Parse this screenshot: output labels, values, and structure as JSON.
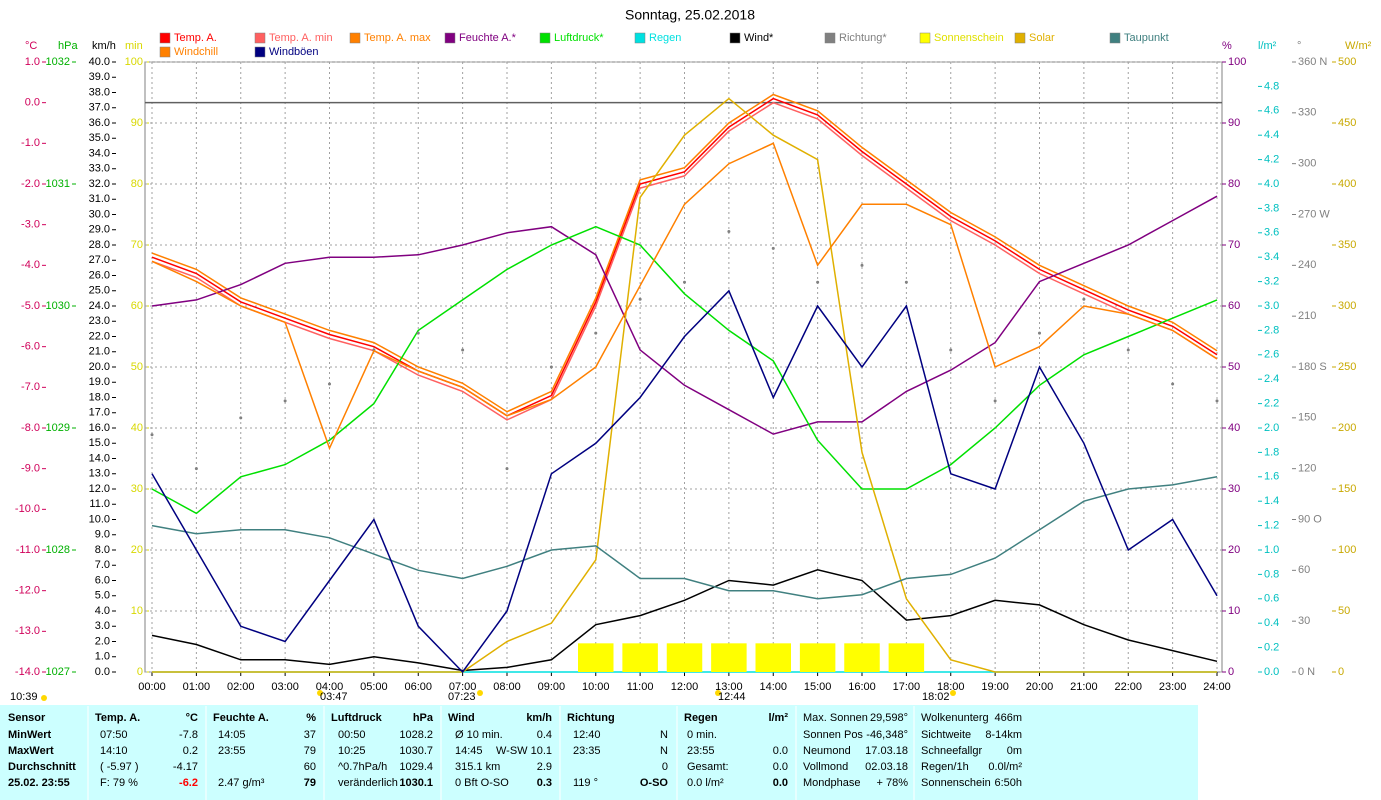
{
  "chart_data": {
    "type": "line",
    "title": "Sonntag, 25.02.2018",
    "xlim": [
      0,
      24
    ],
    "xticks": [
      {
        "value": 0,
        "label": "00:00"
      },
      {
        "value": 1,
        "label": "01:00"
      },
      {
        "value": 2,
        "label": "02:00"
      },
      {
        "value": 3,
        "label": "03:00"
      },
      {
        "value": 4,
        "label": "04:00"
      },
      {
        "value": 5,
        "label": "05:00"
      },
      {
        "value": 6,
        "label": "06:00"
      },
      {
        "value": 7,
        "label": "07:00"
      },
      {
        "value": 8,
        "label": "08:00"
      },
      {
        "value": 9,
        "label": "09:00"
      },
      {
        "value": 10,
        "label": "10:00"
      },
      {
        "value": 11,
        "label": "11:00"
      },
      {
        "value": 12,
        "label": "12:00"
      },
      {
        "value": 13,
        "label": "13:00"
      },
      {
        "value": 14,
        "label": "14:00"
      },
      {
        "value": 15,
        "label": "15:00"
      },
      {
        "value": 16,
        "label": "16:00"
      },
      {
        "value": 17,
        "label": "17:00"
      },
      {
        "value": 18,
        "label": "18:00"
      },
      {
        "value": 19,
        "label": "19:00"
      },
      {
        "value": 20,
        "label": "20:00"
      },
      {
        "value": 21,
        "label": "21:00"
      },
      {
        "value": 22,
        "label": "22:00"
      },
      {
        "value": 23,
        "label": "23:00"
      },
      {
        "value": 24,
        "label": "24:00"
      }
    ],
    "x": [
      0,
      1,
      2,
      3,
      4,
      5,
      6,
      7,
      8,
      9,
      10,
      11,
      12,
      13,
      14,
      15,
      16,
      17,
      18,
      19,
      20,
      21,
      22,
      23,
      24
    ],
    "grid": true,
    "axes": [
      {
        "unit": "°C",
        "side": "left",
        "color": "#d0005a",
        "lim": [
          -14,
          1
        ],
        "ticks": [
          {
            "value": 1,
            "label": "1.0"
          },
          {
            "value": 0,
            "label": "0.0"
          },
          {
            "value": -1,
            "label": "-1.0"
          },
          {
            "value": -2,
            "label": "-2.0"
          },
          {
            "value": -3,
            "label": "-3.0"
          },
          {
            "value": -4,
            "label": "-4.0"
          },
          {
            "value": -5,
            "label": "-5.0"
          },
          {
            "value": -6,
            "label": "-6.0"
          },
          {
            "value": -7,
            "label": "-7.0"
          },
          {
            "value": -8,
            "label": "-8.0"
          },
          {
            "value": -9,
            "label": "-9.0"
          },
          {
            "value": -10,
            "label": "-10.0"
          },
          {
            "value": -11,
            "label": "-11.0"
          },
          {
            "value": -12,
            "label": "-12.0"
          },
          {
            "value": -13,
            "label": "-13.0"
          },
          {
            "value": -14,
            "label": "-14.0"
          }
        ]
      },
      {
        "unit": "hPa",
        "side": "left",
        "color": "#00b000",
        "lim": [
          1027,
          1032
        ],
        "ticks": [
          1032,
          1031,
          1030,
          1029,
          1028,
          1027
        ]
      },
      {
        "unit": "km/h",
        "side": "left",
        "color": "#000000",
        "lim": [
          0,
          40
        ],
        "ticks": [
          {
            "value": 40,
            "label": "40.0"
          },
          {
            "value": 39,
            "label": "39.0"
          },
          {
            "value": 38,
            "label": "38.0"
          },
          {
            "value": 37,
            "label": "37.0"
          },
          {
            "value": 36,
            "label": "36.0"
          },
          {
            "value": 35,
            "label": "35.0"
          },
          {
            "value": 34,
            "label": "34.0"
          },
          {
            "value": 33,
            "label": "33.0"
          },
          {
            "value": 32,
            "label": "32.0"
          },
          {
            "value": 31,
            "label": "31.0"
          },
          {
            "value": 30,
            "label": "30.0"
          },
          {
            "value": 29,
            "label": "29.0"
          },
          {
            "value": 28,
            "label": "28.0"
          },
          {
            "value": 27,
            "label": "27.0"
          },
          {
            "value": 26,
            "label": "26.0"
          },
          {
            "value": 25,
            "label": "25.0"
          },
          {
            "value": 24,
            "label": "24.0"
          },
          {
            "value": 23,
            "label": "23.0"
          },
          {
            "value": 22,
            "label": "22.0"
          },
          {
            "value": 21,
            "label": "21.0"
          },
          {
            "value": 20,
            "label": "20.0"
          },
          {
            "value": 19,
            "label": "19.0"
          },
          {
            "value": 18,
            "label": "18.0"
          },
          {
            "value": 17,
            "label": "17.0"
          },
          {
            "value": 16,
            "label": "16.0"
          },
          {
            "value": 15,
            "label": "15.0"
          },
          {
            "value": 14,
            "label": "14.0"
          },
          {
            "value": 13,
            "label": "13.0"
          },
          {
            "value": 12,
            "label": "12.0"
          },
          {
            "value": 11,
            "label": "11.0"
          },
          {
            "value": 10,
            "label": "10.0"
          },
          {
            "value": 9,
            "label": "9.0"
          },
          {
            "value": 8,
            "label": "8.0"
          },
          {
            "value": 7,
            "label": "7.0"
          },
          {
            "value": 6,
            "label": "6.0"
          },
          {
            "value": 5,
            "label": "5.0"
          },
          {
            "value": 4,
            "label": "4.0"
          },
          {
            "value": 3,
            "label": "3.0"
          },
          {
            "value": 2,
            "label": "2.0"
          },
          {
            "value": 1,
            "label": "1.0"
          },
          {
            "value": 0,
            "label": "0.0"
          }
        ]
      },
      {
        "unit": "min",
        "side": "left",
        "color": "#d8d800",
        "lim": [
          0,
          100
        ],
        "ticks": [
          100,
          90,
          80,
          70,
          60,
          50,
          40,
          30,
          20,
          10,
          0
        ]
      },
      {
        "unit": "%",
        "side": "right",
        "color": "#800080",
        "lim": [
          0,
          100
        ],
        "ticks": [
          100,
          90,
          80,
          70,
          60,
          50,
          40,
          30,
          20,
          10,
          0
        ],
        "grid": true
      },
      {
        "unit": "l/m²",
        "side": "right",
        "color": "#00c0c0",
        "lim": [
          0,
          5
        ],
        "ticks": [
          4.8,
          4.6,
          4.4,
          4.2,
          {
            "value": 4,
            "label": "4.0"
          },
          3.8,
          3.6,
          3.4,
          3.2,
          {
            "value": 3,
            "label": "3.0"
          },
          2.8,
          2.6,
          2.4,
          2.2,
          {
            "value": 2,
            "label": "2.0"
          },
          1.8,
          1.6,
          1.4,
          1.2,
          {
            "value": 1,
            "label": "1.0"
          },
          0.8,
          0.6,
          0.4,
          0.2,
          {
            "value": 0,
            "label": "0.0"
          }
        ]
      },
      {
        "unit": "°",
        "side": "right",
        "color": "#808080",
        "lim": [
          0,
          360
        ],
        "ticks": [
          {
            "value": 360,
            "label": "360 N"
          },
          330,
          300,
          {
            "value": 270,
            "label": "270 W"
          },
          240,
          210,
          {
            "value": 180,
            "label": "180 S"
          },
          150,
          120,
          {
            "value": 90,
            "label": "90 O"
          },
          60,
          30,
          {
            "value": 0,
            "label": "0 N"
          }
        ]
      },
      {
        "unit": "W/m²",
        "side": "right",
        "color": "#c8a800",
        "lim": [
          0,
          500
        ],
        "ticks": [
          500,
          450,
          400,
          350,
          300,
          250,
          200,
          150,
          100,
          50,
          0
        ]
      }
    ],
    "series": [
      {
        "name": "Temp. A.",
        "color": "#ff0000",
        "axis": "°C",
        "style": "line",
        "values": [
          -3.8,
          -4.2,
          -4.9,
          -5.3,
          -5.7,
          -6.0,
          -6.6,
          -7.0,
          -7.7,
          -7.2,
          -4.9,
          -2.0,
          -1.7,
          -0.6,
          0.1,
          -0.3,
          -1.2,
          -2.0,
          -2.8,
          -3.4,
          -4.1,
          -4.6,
          -5.1,
          -5.5,
          -6.2
        ]
      },
      {
        "name": "Temp. A. min",
        "color": "#ff6060",
        "axis": "°C",
        "style": "line",
        "values": [
          -3.9,
          -4.3,
          -5.0,
          -5.4,
          -5.8,
          -6.1,
          -6.7,
          -7.1,
          -7.8,
          -7.3,
          -5.0,
          -2.1,
          -1.8,
          -0.7,
          0.0,
          -0.4,
          -1.3,
          -2.1,
          -2.9,
          -3.5,
          -4.2,
          -4.7,
          -5.2,
          -5.6,
          -6.3
        ]
      },
      {
        "name": "Temp. A. max",
        "color": "#ff8000",
        "axis": "°C",
        "style": "line",
        "values": [
          -3.7,
          -4.1,
          -4.8,
          -5.2,
          -5.6,
          -5.9,
          -6.5,
          -6.9,
          -7.6,
          -7.1,
          -4.8,
          -1.9,
          -1.6,
          -0.5,
          0.2,
          -0.2,
          -1.1,
          -1.9,
          -2.7,
          -3.3,
          -4.0,
          -4.5,
          -5.0,
          -5.4,
          -6.1
        ]
      },
      {
        "name": "Feuchte A.*",
        "color": "#800080",
        "axis": "%",
        "style": "line",
        "values": [
          60,
          61,
          63.5,
          67,
          68,
          68,
          68.4,
          70,
          72,
          73,
          68.4,
          52.8,
          47,
          43,
          39,
          41,
          41,
          46,
          49.5,
          54,
          64,
          67,
          70,
          74,
          78
        ]
      },
      {
        "name": "Luftdruck*",
        "color": "#00e000",
        "axis": "hPa",
        "style": "line",
        "values": [
          1028.5,
          1028.3,
          1028.6,
          1028.7,
          1028.9,
          1029.2,
          1029.8,
          1030.05,
          1030.3,
          1030.5,
          1030.65,
          1030.5,
          1030.1,
          1029.8,
          1029.55,
          1028.9,
          1028.5,
          1028.5,
          1028.7,
          1029.0,
          1029.35,
          1029.6,
          1029.75,
          1029.9,
          1030.05
        ]
      },
      {
        "name": "Regen",
        "color": "#00e0e0",
        "axis": "l/m²",
        "style": "line",
        "values": [
          0,
          0,
          0,
          0,
          0,
          0,
          0,
          0,
          0,
          0,
          0,
          0,
          0,
          0,
          0,
          0,
          0,
          0,
          0,
          0,
          0,
          0,
          0,
          0,
          0
        ]
      },
      {
        "name": "Wind*",
        "color": "#000000",
        "axis": "km/h",
        "style": "line",
        "values": [
          2.4,
          1.8,
          0.8,
          0.8,
          0.5,
          1.0,
          0.6,
          0.1,
          0.3,
          0.8,
          3.1,
          3.7,
          4.7,
          6.0,
          5.7,
          6.7,
          6.0,
          3.4,
          3.7,
          4.7,
          4.4,
          3.1,
          2.1,
          1.4,
          0.7
        ]
      },
      {
        "name": "Richtung*",
        "color": "#808080",
        "axis": "°",
        "style": "dots",
        "values": [
          140,
          120,
          150,
          160,
          170,
          190,
          200,
          190,
          120,
          180,
          200,
          220,
          230,
          260,
          250,
          230,
          240,
          230,
          190,
          160,
          200,
          220,
          190,
          170,
          160
        ]
      },
      {
        "name": "Sonnenschein",
        "color": "#ffff00",
        "axis": "min",
        "style": "bars",
        "values": [
          0,
          0,
          0,
          0,
          0,
          0,
          0,
          0,
          0,
          0,
          4.7,
          4.7,
          4.7,
          4.7,
          4.7,
          4.7,
          4.7,
          4.7,
          0,
          0,
          0,
          0,
          0,
          0,
          0
        ]
      },
      {
        "name": "Solar",
        "color": "#e0b000",
        "axis": "W/m²",
        "style": "line",
        "values": [
          0,
          0,
          0,
          0,
          0,
          0,
          0,
          0,
          25,
          40,
          92,
          389,
          440,
          470,
          440,
          420,
          180,
          60,
          10,
          0,
          0,
          0,
          0,
          0,
          0
        ]
      },
      {
        "name": "Taupunkt",
        "color": "#408080",
        "axis": "°C",
        "style": "line",
        "values": [
          -10.4,
          -10.6,
          -10.5,
          -10.5,
          -10.7,
          -11.1,
          -11.5,
          -11.7,
          -11.4,
          -11.0,
          -10.9,
          -11.7,
          -11.7,
          -12.0,
          -12.0,
          -12.2,
          -12.1,
          -11.7,
          -11.6,
          -11.2,
          -10.5,
          -9.8,
          -9.5,
          -9.4,
          -9.2
        ]
      },
      {
        "name": "Windchill",
        "color": "#ff8000",
        "axis": "°C",
        "style": "line",
        "values": [
          -3.9,
          -4.4,
          -5.0,
          -5.4,
          -8.5,
          -6.1,
          -6.6,
          -7.0,
          -7.7,
          -7.3,
          -6.5,
          -4.5,
          -2.5,
          -1.5,
          -1.0,
          -4.0,
          -2.5,
          -2.5,
          -3.0,
          -6.5,
          -6.0,
          -5.0,
          -5.2,
          -5.6,
          -6.3
        ]
      },
      {
        "name": "Windböen",
        "color": "#000080",
        "axis": "km/h",
        "style": "line",
        "values": [
          13,
          8,
          3,
          2,
          6,
          10,
          3,
          0,
          4,
          13,
          15,
          18,
          22,
          25,
          18,
          24,
          20,
          24,
          13,
          12,
          20,
          15,
          8,
          10,
          5
        ]
      }
    ],
    "annotations": [
      "10:39",
      "03:47",
      "07:23",
      "12:44",
      "18:02"
    ]
  },
  "table": {
    "sensor": {
      "header": "Sensor",
      "rows": [
        "MinWert",
        "MaxWert",
        "Durchschnitt",
        "25.02. 23:55"
      ]
    },
    "sections": [
      {
        "name": "Temp. A.",
        "unit": "°C",
        "rows": [
          [
            "07:50",
            "-7.8"
          ],
          [
            "14:10",
            "0.2"
          ],
          [
            "( -5.97 )",
            "-4.17"
          ],
          [
            "F: 79 %",
            "-6.2"
          ]
        ]
      },
      {
        "name": "Feuchte A.",
        "unit": "%",
        "rows": [
          [
            "14:05",
            "37"
          ],
          [
            "23:55",
            "79"
          ],
          [
            null,
            "60"
          ],
          [
            "2.47 g/m³",
            "79"
          ]
        ]
      },
      {
        "name": "Luftdruck",
        "unit": "hPa",
        "rows": [
          [
            "00:50",
            "1028.2"
          ],
          [
            "10:25",
            "1030.7"
          ],
          [
            "^0.7hPa/h",
            "1029.4"
          ],
          [
            "veränderlich",
            "1030.1"
          ]
        ]
      },
      {
        "name": "Wind",
        "unit": "km/h",
        "rows": [
          [
            "Ø 10 min.",
            "0.4"
          ],
          [
            "14:45",
            "W-SW 10.1"
          ],
          [
            "315.1 km",
            "2.9"
          ],
          [
            "0 Bft O-SO",
            "0.3"
          ]
        ]
      },
      {
        "name": "Richtung",
        "unit": null,
        "rows": [
          [
            "12:40",
            "N"
          ],
          [
            "23:35",
            "N"
          ],
          [
            null,
            "0"
          ],
          [
            "119 °",
            "O-SO"
          ]
        ]
      },
      {
        "name": "Regen",
        "unit": "l/m²",
        "rows": [
          [
            "0 min.",
            null
          ],
          [
            "23:55",
            "0.0"
          ],
          [
            "Gesamt:",
            "0.0"
          ],
          [
            "0.0 l/m²",
            "0.0"
          ]
        ]
      }
    ],
    "info": [
      [
        [
          "Max. Sonnen",
          "29,598°"
        ],
        [
          "Sonnen Pos",
          "-46,348°"
        ],
        [
          "Neumond",
          "17.03.18"
        ],
        [
          "Vollmond",
          "02.03.18"
        ],
        [
          "Mondphase",
          "+ 78%"
        ]
      ],
      [
        [
          "Wolkenunterg",
          "466m"
        ],
        [
          "Sichtweite",
          "8-14km"
        ],
        [
          "Schneefallgr",
          "0m"
        ],
        [
          "Regen/1h",
          "0.0l/m²"
        ],
        [
          "Sonnenschein",
          "6:50h"
        ]
      ]
    ]
  }
}
